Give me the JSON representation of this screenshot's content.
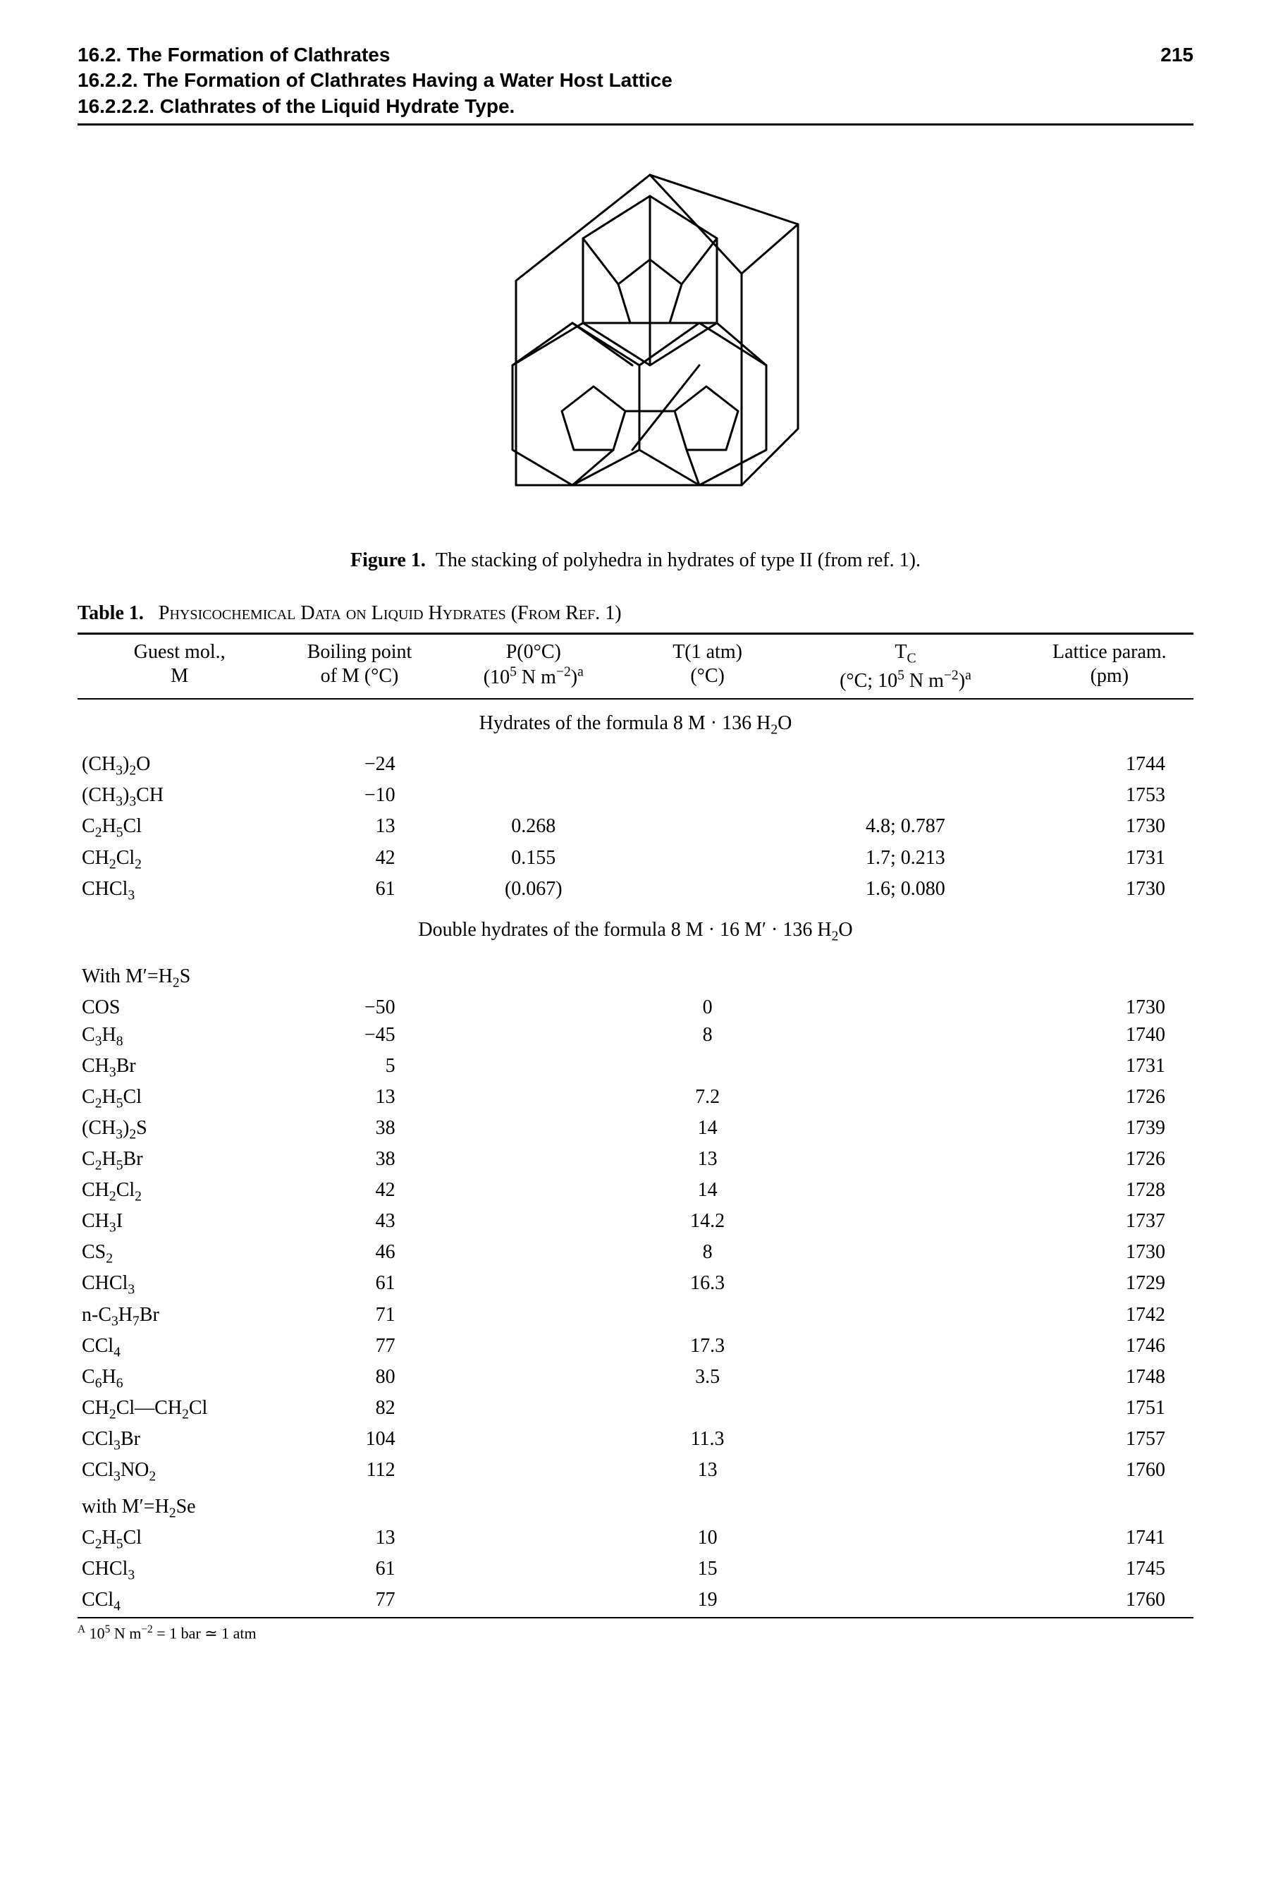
{
  "page_number": "215",
  "header_lines": [
    "16.2. The Formation of Clathrates",
    "16.2.2. The Formation of Clathrates Having a Water Host Lattice",
    "16.2.2.2. Clathrates of the Liquid Hydrate Type."
  ],
  "figure": {
    "label": "Figure 1.",
    "caption": "The stacking of polyhedra in hydrates of type II (from ref. 1)."
  },
  "table": {
    "label": "Table 1.",
    "title": "Physicochemical Data on Liquid Hydrates (From Ref. 1)",
    "columns": {
      "mol_line1": "Guest mol.,",
      "mol_line2": "M",
      "bp_line1": "Boiling point",
      "bp_line2": "of M (°C)",
      "p0_line1": "P(0°C)",
      "p0_line2_html": "(10<sup>5</sup> N m<sup>−2</sup>)<sup>a</sup>",
      "t1_line1": "T(1 atm)",
      "t1_line2": "(°C)",
      "tc_line1_html": "T<sub>C</sub>",
      "tc_line2_html": "(°C; 10<sup>5</sup> N m<sup>−2</sup>)<sup>a</sup>",
      "lp_line1": "Lattice param.",
      "lp_line2": "(pm)"
    },
    "section1_title_html": "Hydrates of the formula 8 M · 136 H<sub>2</sub>O",
    "section1_rows": [
      {
        "mol_html": "(CH<sub>3</sub>)<sub>2</sub>O",
        "bp": "−24",
        "p0": "",
        "t1": "",
        "tc": "",
        "lp": "1744"
      },
      {
        "mol_html": "(CH<sub>3</sub>)<sub>3</sub>CH",
        "bp": "−10",
        "p0": "",
        "t1": "",
        "tc": "",
        "lp": "1753"
      },
      {
        "mol_html": "C<sub>2</sub>H<sub>5</sub>Cl",
        "bp": "13",
        "p0": "0.268",
        "t1": "",
        "tc": "4.8; 0.787",
        "lp": "1730"
      },
      {
        "mol_html": "CH<sub>2</sub>Cl<sub>2</sub>",
        "bp": "42",
        "p0": "0.155",
        "t1": "",
        "tc": "1.7; 0.213",
        "lp": "1731"
      },
      {
        "mol_html": "CHCl<sub>3</sub>",
        "bp": "61",
        "p0": "(0.067)",
        "t1": "",
        "tc": "1.6; 0.080",
        "lp": "1730"
      }
    ],
    "section2_title_html": "Double hydrates of the formula 8 M · 16 M′ · 136 H<sub>2</sub>O",
    "subhead2_html": "With M′=H<sub>2</sub>S",
    "section2_rows": [
      {
        "mol_html": "COS",
        "bp": "−50",
        "p0": "",
        "t1": "0",
        "tc": "",
        "lp": "1730"
      },
      {
        "mol_html": "C<sub>3</sub>H<sub>8</sub>",
        "bp": "−45",
        "p0": "",
        "t1": "8",
        "tc": "",
        "lp": "1740"
      },
      {
        "mol_html": "CH<sub>3</sub>Br",
        "bp": "5",
        "p0": "",
        "t1": "",
        "tc": "",
        "lp": "1731"
      },
      {
        "mol_html": "C<sub>2</sub>H<sub>5</sub>Cl",
        "bp": "13",
        "p0": "",
        "t1": "7.2",
        "tc": "",
        "lp": "1726"
      },
      {
        "mol_html": "(CH<sub>3</sub>)<sub>2</sub>S",
        "bp": "38",
        "p0": "",
        "t1": "14",
        "tc": "",
        "lp": "1739"
      },
      {
        "mol_html": "C<sub>2</sub>H<sub>5</sub>Br",
        "bp": "38",
        "p0": "",
        "t1": "13",
        "tc": "",
        "lp": "1726"
      },
      {
        "mol_html": "CH<sub>2</sub>Cl<sub>2</sub>",
        "bp": "42",
        "p0": "",
        "t1": "14",
        "tc": "",
        "lp": "1728"
      },
      {
        "mol_html": "CH<sub>3</sub>I",
        "bp": "43",
        "p0": "",
        "t1": "14.2",
        "tc": "",
        "lp": "1737"
      },
      {
        "mol_html": "CS<sub>2</sub>",
        "bp": "46",
        "p0": "",
        "t1": "8",
        "tc": "",
        "lp": "1730"
      },
      {
        "mol_html": "CHCl<sub>3</sub>",
        "bp": "61",
        "p0": "",
        "t1": "16.3",
        "tc": "",
        "lp": "1729"
      },
      {
        "mol_html": "n-C<sub>3</sub>H<sub>7</sub>Br",
        "bp": "71",
        "p0": "",
        "t1": "",
        "tc": "",
        "lp": "1742"
      },
      {
        "mol_html": "CCl<sub>4</sub>",
        "bp": "77",
        "p0": "",
        "t1": "17.3",
        "tc": "",
        "lp": "1746"
      },
      {
        "mol_html": "C<sub>6</sub>H<sub>6</sub>",
        "bp": "80",
        "p0": "",
        "t1": "3.5",
        "tc": "",
        "lp": "1748"
      },
      {
        "mol_html": "CH<sub>2</sub>Cl—CH<sub>2</sub>Cl",
        "bp": "82",
        "p0": "",
        "t1": "",
        "tc": "",
        "lp": "1751"
      },
      {
        "mol_html": "CCl<sub>3</sub>Br",
        "bp": "104",
        "p0": "",
        "t1": "11.3",
        "tc": "",
        "lp": "1757"
      },
      {
        "mol_html": "CCl<sub>3</sub>NO<sub>2</sub>",
        "bp": "112",
        "p0": "",
        "t1": "13",
        "tc": "",
        "lp": "1760"
      }
    ],
    "subhead3_html": "with M′=H<sub>2</sub>Se",
    "section3_rows": [
      {
        "mol_html": "C<sub>2</sub>H<sub>5</sub>Cl",
        "bp": "13",
        "p0": "",
        "t1": "10",
        "tc": "",
        "lp": "1741"
      },
      {
        "mol_html": "CHCl<sub>3</sub>",
        "bp": "61",
        "p0": "",
        "t1": "15",
        "tc": "",
        "lp": "1745"
      },
      {
        "mol_html": "CCl<sub>4</sub>",
        "bp": "77",
        "p0": "",
        "t1": "19",
        "tc": "",
        "lp": "1760"
      }
    ],
    "footnote_html": "<sup>A</sup> 10<sup>5</sup> N m<sup>−2</sup> = 1 bar ≃ 1 atm"
  }
}
